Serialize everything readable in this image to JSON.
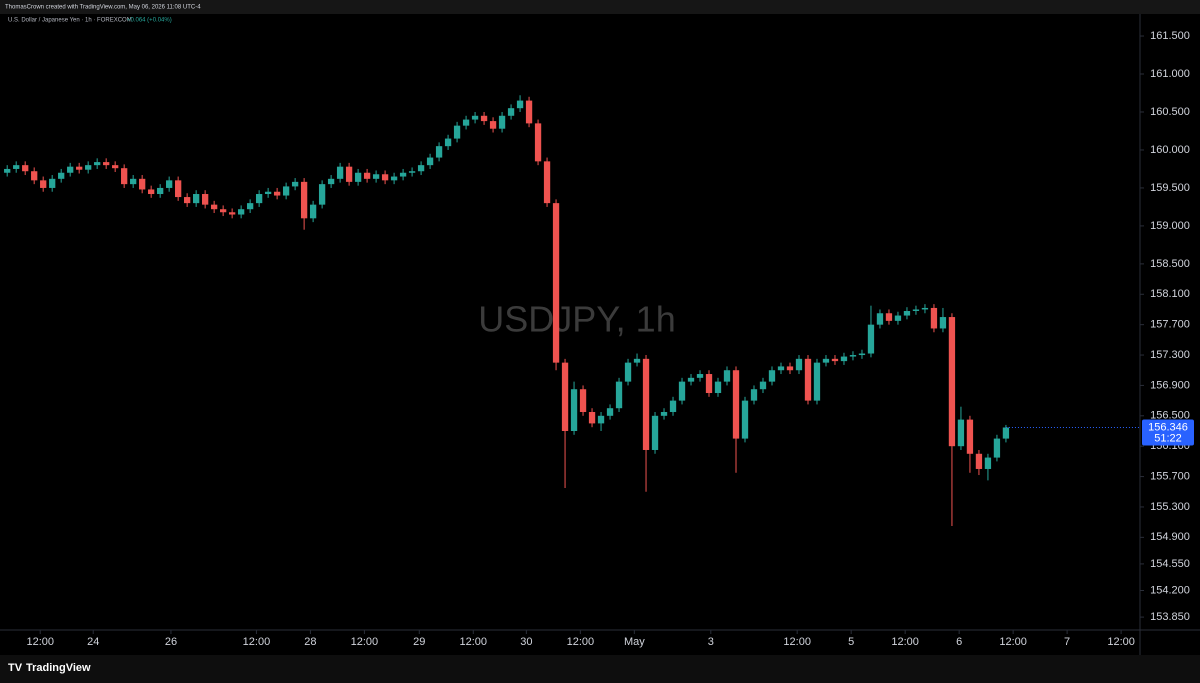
{
  "header": {
    "credit": "ThomasCrown created with TradingView.com, May 06, 2026 11:08 UTC-4",
    "symbol": "U.S. Dollar / Japanese Yen · 1h · FOREXCOM",
    "change": "+0.064 (+0.04%)",
    "watermark": "USDJPY, 1h",
    "logo": "TradingView",
    "countdown": "51:22"
  },
  "chart_data": {
    "type": "candlestick",
    "up_color": "#26a69a",
    "down_color": "#ef5350",
    "grid": false,
    "open": [
      159.7,
      159.75,
      159.8,
      159.72,
      159.6,
      159.5,
      159.62,
      159.7,
      159.78,
      159.74,
      159.8,
      159.84,
      159.8,
      159.76,
      159.55,
      159.62,
      159.48,
      159.42,
      159.5,
      159.6,
      159.38,
      159.3,
      159.42,
      159.28,
      159.22,
      159.18,
      159.15,
      159.22,
      159.3,
      159.42,
      159.45,
      159.4,
      159.52,
      159.58,
      159.1,
      159.28,
      159.55,
      159.62,
      159.78,
      159.58,
      159.7,
      159.62,
      159.68,
      159.6,
      159.65,
      159.7,
      159.72,
      159.8,
      159.9,
      160.05,
      160.15,
      160.32,
      160.4,
      160.45,
      160.38,
      160.28,
      160.45,
      160.55,
      160.65,
      160.35,
      159.85,
      159.3,
      157.2,
      156.3,
      156.85,
      156.55,
      156.4,
      156.5,
      156.6,
      156.95,
      157.2,
      157.25,
      156.05,
      156.5,
      156.55,
      156.7,
      156.95,
      157.0,
      157.05,
      156.8,
      156.95,
      157.1,
      156.2,
      156.7,
      156.85,
      156.95,
      157.1,
      157.15,
      157.1,
      157.25,
      156.7,
      157.2,
      157.25,
      157.22,
      157.28,
      157.3,
      157.32,
      157.7,
      157.85,
      157.75,
      157.82,
      157.88,
      157.9,
      157.92,
      157.65,
      157.8,
      156.1,
      156.45,
      156.0,
      155.8,
      155.95,
      156.2
    ],
    "high": [
      159.8,
      159.85,
      159.85,
      159.77,
      159.65,
      159.67,
      159.75,
      159.83,
      159.83,
      159.85,
      159.89,
      159.89,
      159.85,
      159.81,
      159.67,
      159.67,
      159.53,
      159.55,
      159.65,
      159.65,
      159.43,
      159.47,
      159.47,
      159.33,
      159.27,
      159.23,
      159.27,
      159.35,
      159.47,
      159.5,
      159.5,
      159.57,
      159.63,
      159.63,
      159.33,
      159.6,
      159.67,
      159.83,
      159.83,
      159.75,
      159.75,
      159.73,
      159.73,
      159.7,
      159.75,
      159.77,
      159.85,
      159.95,
      160.1,
      160.2,
      160.37,
      160.45,
      160.5,
      160.5,
      160.43,
      160.5,
      160.6,
      160.72,
      160.7,
      160.4,
      159.9,
      159.35,
      157.25,
      156.95,
      156.9,
      156.6,
      156.55,
      156.65,
      157.0,
      157.25,
      157.32,
      157.3,
      156.55,
      156.6,
      156.75,
      157.0,
      157.05,
      157.1,
      157.1,
      157.0,
      157.15,
      157.15,
      156.75,
      156.9,
      157.0,
      157.15,
      157.2,
      157.2,
      157.3,
      157.3,
      157.25,
      157.3,
      157.3,
      157.33,
      157.35,
      157.37,
      157.95,
      157.9,
      157.9,
      157.87,
      157.93,
      157.95,
      157.97,
      157.97,
      157.92,
      157.85,
      156.62,
      156.5,
      156.05,
      156.0,
      156.25,
      156.38
    ],
    "low": [
      159.65,
      159.7,
      159.67,
      159.55,
      159.45,
      159.45,
      159.57,
      159.65,
      159.69,
      159.69,
      159.75,
      159.75,
      159.71,
      159.5,
      159.5,
      159.43,
      159.37,
      159.37,
      159.45,
      159.33,
      159.25,
      159.25,
      159.23,
      159.17,
      159.13,
      159.1,
      159.1,
      159.17,
      159.25,
      159.37,
      159.35,
      159.35,
      159.47,
      158.95,
      159.05,
      159.23,
      159.5,
      159.57,
      159.53,
      159.53,
      159.57,
      159.57,
      159.55,
      159.55,
      159.6,
      159.65,
      159.67,
      159.75,
      159.85,
      160.0,
      160.1,
      160.27,
      160.35,
      160.33,
      160.23,
      160.23,
      160.4,
      160.5,
      160.3,
      159.8,
      159.25,
      157.1,
      155.55,
      156.25,
      156.5,
      156.35,
      156.3,
      156.45,
      156.55,
      156.9,
      157.15,
      155.5,
      156.0,
      156.45,
      156.5,
      156.65,
      156.9,
      156.95,
      156.75,
      156.75,
      156.9,
      155.75,
      156.15,
      156.65,
      156.8,
      156.9,
      157.05,
      157.05,
      157.05,
      156.65,
      156.65,
      157.15,
      157.17,
      157.17,
      157.23,
      157.25,
      157.27,
      157.65,
      157.7,
      157.7,
      157.77,
      157.83,
      157.85,
      157.6,
      157.6,
      155.05,
      156.05,
      155.75,
      155.72,
      155.65,
      155.9,
      156.15
    ],
    "close": [
      159.75,
      159.8,
      159.72,
      159.6,
      159.5,
      159.62,
      159.7,
      159.78,
      159.74,
      159.8,
      159.84,
      159.8,
      159.76,
      159.55,
      159.62,
      159.48,
      159.42,
      159.5,
      159.6,
      159.38,
      159.3,
      159.42,
      159.28,
      159.22,
      159.18,
      159.15,
      159.22,
      159.3,
      159.42,
      159.45,
      159.4,
      159.52,
      159.58,
      159.1,
      159.28,
      159.55,
      159.62,
      159.78,
      159.58,
      159.7,
      159.62,
      159.68,
      159.6,
      159.65,
      159.7,
      159.72,
      159.8,
      159.9,
      160.05,
      160.15,
      160.32,
      160.4,
      160.45,
      160.38,
      160.28,
      160.45,
      160.55,
      160.65,
      160.35,
      159.85,
      159.3,
      157.2,
      156.3,
      156.85,
      156.55,
      156.4,
      156.5,
      156.6,
      156.95,
      157.2,
      157.25,
      156.05,
      156.5,
      156.55,
      156.7,
      156.95,
      157.0,
      157.05,
      156.8,
      156.95,
      157.1,
      156.2,
      156.7,
      156.85,
      156.95,
      157.1,
      157.15,
      157.1,
      157.25,
      156.7,
      157.2,
      157.25,
      157.22,
      157.28,
      157.3,
      157.32,
      157.7,
      157.85,
      157.75,
      157.82,
      157.88,
      157.9,
      157.92,
      157.65,
      157.8,
      156.1,
      156.45,
      156.0,
      155.8,
      155.95,
      156.2,
      156.346
    ],
    "ylim": [
      153.68,
      161.79
    ],
    "yticks": [
      {
        "value": 161.5,
        "label": "161.500"
      },
      {
        "value": 161.0,
        "label": "161.000"
      },
      {
        "value": 160.5,
        "label": "160.500"
      },
      {
        "value": 160.0,
        "label": "160.000"
      },
      {
        "value": 159.5,
        "label": "159.500"
      },
      {
        "value": 159.0,
        "label": "159.000"
      },
      {
        "value": 158.5,
        "label": "158.500"
      },
      {
        "value": 158.1,
        "label": "158.100"
      },
      {
        "value": 157.7,
        "label": "157.700"
      },
      {
        "value": 157.3,
        "label": "157.300"
      },
      {
        "value": 156.9,
        "label": "156.900"
      },
      {
        "value": 156.5,
        "label": "156.500"
      },
      {
        "value": 156.1,
        "label": "156.100"
      },
      {
        "value": 155.7,
        "label": "155.700"
      },
      {
        "value": 155.3,
        "label": "155.300"
      },
      {
        "value": 154.9,
        "label": "154.900"
      },
      {
        "value": 154.55,
        "label": "154.550"
      },
      {
        "value": 154.2,
        "label": "154.200"
      },
      {
        "value": 153.85,
        "label": "153.850"
      }
    ],
    "xlim": [
      -0.8,
      125.9
    ],
    "xticks": [
      {
        "value": 3.67,
        "label": "12:00"
      },
      {
        "value": 9.56,
        "label": "24"
      },
      {
        "value": 18.2,
        "label": "26"
      },
      {
        "value": 27.7,
        "label": "12:00"
      },
      {
        "value": 33.7,
        "label": "28"
      },
      {
        "value": 39.7,
        "label": "12:00"
      },
      {
        "value": 45.8,
        "label": "29"
      },
      {
        "value": 51.8,
        "label": "12:00"
      },
      {
        "value": 57.7,
        "label": "30"
      },
      {
        "value": 63.7,
        "label": "12:00"
      },
      {
        "value": 69.7,
        "label": "May"
      },
      {
        "value": 78.2,
        "label": "3"
      },
      {
        "value": 87.8,
        "label": "12:00"
      },
      {
        "value": 93.8,
        "label": "5"
      },
      {
        "value": 99.8,
        "label": "12:00"
      },
      {
        "value": 105.8,
        "label": "6"
      },
      {
        "value": 111.8,
        "label": "12:00"
      },
      {
        "value": 117.8,
        "label": "7"
      },
      {
        "value": 123.8,
        "label": "12:00"
      }
    ]
  }
}
